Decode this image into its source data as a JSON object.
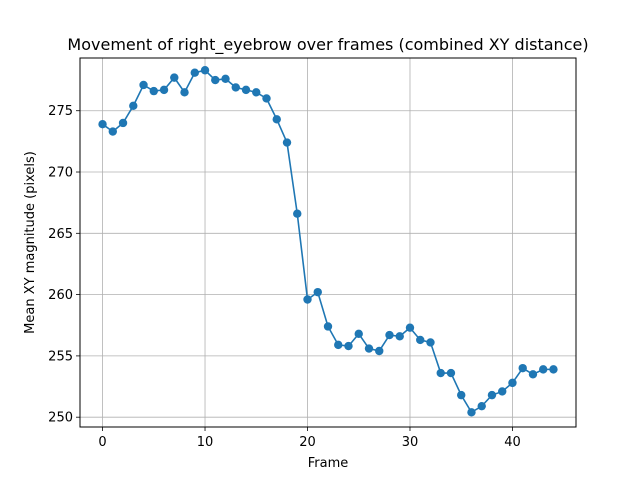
{
  "chart_data": {
    "type": "line",
    "title": "Movement of right_eyebrow over frames (combined XY distance)",
    "xlabel": "Frame",
    "ylabel": "Mean XY magnitude (pixels)",
    "xlim": [
      -2.2,
      46.2
    ],
    "ylim": [
      249.2,
      279.3
    ],
    "xticks": [
      0,
      10,
      20,
      30,
      40
    ],
    "yticks": [
      250,
      255,
      260,
      265,
      270,
      275
    ],
    "grid": true,
    "color": "#1f77b4",
    "marker": "circle",
    "x": [
      0,
      1,
      2,
      3,
      4,
      5,
      6,
      7,
      8,
      9,
      10,
      11,
      12,
      13,
      14,
      15,
      16,
      17,
      18,
      19,
      20,
      21,
      22,
      23,
      24,
      25,
      26,
      27,
      28,
      29,
      30,
      31,
      32,
      33,
      34,
      35,
      36,
      37,
      38,
      39,
      40,
      41,
      42,
      43,
      44
    ],
    "y": [
      273.9,
      273.3,
      274.0,
      275.4,
      277.1,
      276.6,
      276.7,
      277.7,
      276.5,
      278.1,
      278.3,
      277.5,
      277.6,
      276.9,
      276.7,
      276.5,
      276.0,
      274.3,
      272.4,
      266.6,
      259.6,
      260.2,
      257.4,
      255.9,
      255.8,
      256.8,
      255.6,
      255.4,
      256.7,
      256.6,
      257.3,
      256.3,
      256.1,
      253.6,
      253.6,
      251.8,
      250.4,
      250.9,
      251.8,
      252.1,
      252.8,
      254.0,
      253.5,
      253.9,
      253.9
    ]
  }
}
